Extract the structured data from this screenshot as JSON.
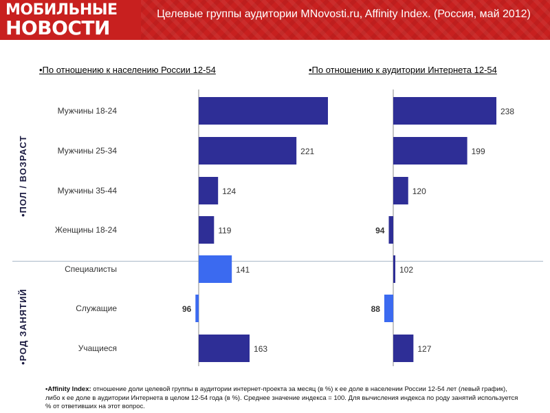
{
  "header": {
    "logo_top": "МОБИЛЬНЫЕ",
    "logo_bottom": "НОВОСТИ",
    "title": "Целевые группы аудитории MNovosti.ru, Affinity Index. (Россия, май 2012)"
  },
  "colors": {
    "header_bg": "#c8201f",
    "bar_dark": "#2e2e96",
    "bar_light": "#3b6af0"
  },
  "side_labels": {
    "gender_age": "•ПОЛ / ВОЗРАСТ",
    "occupation": "•РОД ЗАНЯТИЙ"
  },
  "footnote": {
    "lead": "•Affinity Index:",
    "text": " отношение доли целевой группы в аудитории интернет-проекта за месяц (в %) к ее доле в населении России 12-54 лет (левый график), либо к ее доле в аудитории Интернета в целом 12-54 года (в %). Среднее значение индекса = 100. Для вычисления индекса по роду занятий используется % от ответивших на этот вопрос."
  },
  "chart_data": [
    {
      "type": "bar",
      "orientation": "horizontal",
      "title": "•По отношению к населению России 12-54",
      "baseline": 100,
      "categories": [
        "Мужчины 18-24",
        "Мужчины 25-34",
        "Мужчины 35-44",
        "Женщины 18-24",
        "Специалисты",
        "Служащие",
        "Учащиеся"
      ],
      "values": [
        260,
        221,
        124,
        119,
        141,
        96,
        163
      ],
      "labels": [
        "",
        "221",
        "124",
        "119",
        "141",
        "96",
        "163"
      ],
      "group_of_category": [
        "gender_age",
        "gender_age",
        "gender_age",
        "gender_age",
        "occupation",
        "occupation",
        "occupation"
      ],
      "bar_colors": [
        "#2e2e96",
        "#2e2e96",
        "#2e2e96",
        "#2e2e96",
        "#3b6af0",
        "#3b6af0",
        "#2e2e96"
      ]
    },
    {
      "type": "bar",
      "orientation": "horizontal",
      "title": "•По отношению к аудитории Интернета 12-54",
      "baseline": 100,
      "categories": [
        "Мужчины 18-24",
        "Мужчины 25-34",
        "Мужчины 35-44",
        "Женщины 18-24",
        "Специалисты",
        "Служащие",
        "Учащиеся"
      ],
      "values": [
        238,
        199,
        120,
        94,
        102,
        88,
        127
      ],
      "labels": [
        "238",
        "199",
        "120",
        "94",
        "102",
        "88",
        "127"
      ],
      "group_of_category": [
        "gender_age",
        "gender_age",
        "gender_age",
        "gender_age",
        "occupation",
        "occupation",
        "occupation"
      ],
      "bar_colors": [
        "#2e2e96",
        "#2e2e96",
        "#2e2e96",
        "#2e2e96",
        "#2e2e96",
        "#3b6af0",
        "#2e2e96"
      ]
    }
  ]
}
